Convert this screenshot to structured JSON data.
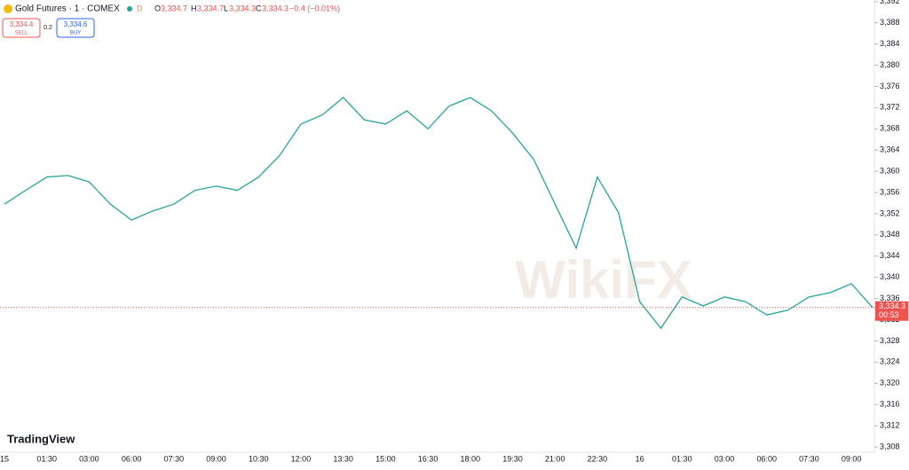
{
  "header": {
    "symbol": "Gold Futures · 1 · COMEX",
    "badge": "D",
    "open_label": "O",
    "open": "3,334.7",
    "high_label": "H",
    "high": "3,334.7",
    "low_label": "L",
    "low": "3,334.3",
    "close_label": "C",
    "close": "3,334.3",
    "change": "−0.4 (−0.01%)"
  },
  "trade": {
    "sell_price": "3,334.4",
    "sell": "SELL",
    "spread": "0.2",
    "buy_price": "3,334.6",
    "buy": "BUY"
  },
  "price_tag": {
    "price": "3,334.3",
    "countdown": "00:53"
  },
  "brand": "TradingView",
  "watermark": "WikiFX",
  "chart_data": {
    "type": "line",
    "categories": [
      "15",
      null,
      "01:30",
      null,
      "03:00",
      null,
      "06:00",
      null,
      "07:30",
      null,
      "09:00",
      null,
      "10:30",
      null,
      "12:00",
      null,
      "13:30",
      null,
      "15:00",
      null,
      "16:30",
      null,
      "18:00",
      null,
      "19:30",
      null,
      "21:00",
      null,
      "22:30",
      null,
      "16",
      null,
      "01:30",
      null,
      "03:00",
      null,
      "06:00",
      null,
      "07:30",
      null,
      "09:00",
      null
    ],
    "series": [
      {
        "name": "Gold Futures",
        "color": "#26a69a",
        "values": [
          3353.8,
          3356.4,
          3358.9,
          3359.2,
          3358,
          3353.8,
          3350.8,
          3352.5,
          3353.8,
          3356.4,
          3357.2,
          3356.4,
          3358.9,
          3363,
          3368.9,
          3370.6,
          3373.9,
          3369.7,
          3368.9,
          3371.4,
          3368,
          3372.3,
          3373.9,
          3371.4,
          3367.2,
          3362.2,
          3353.8,
          3345.5,
          3358.9,
          3352.2,
          3335.4,
          3330.4,
          3336.3,
          3334.6,
          3336.3,
          3335.4,
          3332.9,
          3333.8,
          3336.3,
          3337.1,
          3338.8,
          3334.3
        ]
      }
    ],
    "ylim": [
      3307,
      3392.3
    ],
    "yticks": [
      {
        "value": 3308,
        "label": "3,308"
      },
      {
        "value": 3312,
        "label": "3,312"
      },
      {
        "value": 3316,
        "label": "3,316"
      },
      {
        "value": 3320,
        "label": "3,320"
      },
      {
        "value": 3324,
        "label": "3,324"
      },
      {
        "value": 3328,
        "label": "3,328"
      },
      {
        "value": 3332,
        "label": "3,332"
      },
      {
        "value": 3336,
        "label": "3,336"
      },
      {
        "value": 3340,
        "label": "3,340"
      },
      {
        "value": 3344,
        "label": "3,344"
      },
      {
        "value": 3348,
        "label": "3,348"
      },
      {
        "value": 3352,
        "label": "3,352"
      },
      {
        "value": 3356,
        "label": "3,356"
      },
      {
        "value": 3360,
        "label": "3,360"
      },
      {
        "value": 3364,
        "label": "3,364"
      },
      {
        "value": 3368,
        "label": "3,368"
      },
      {
        "value": 3372,
        "label": "3,372"
      },
      {
        "value": 3376,
        "label": "3,376"
      },
      {
        "value": 3380,
        "label": "3,380"
      },
      {
        "value": 3384,
        "label": "3,384"
      },
      {
        "value": 3388,
        "label": "3,388"
      },
      {
        "value": 3392,
        "label": "3,392"
      }
    ],
    "current_price": 3334.3,
    "grid": false
  }
}
